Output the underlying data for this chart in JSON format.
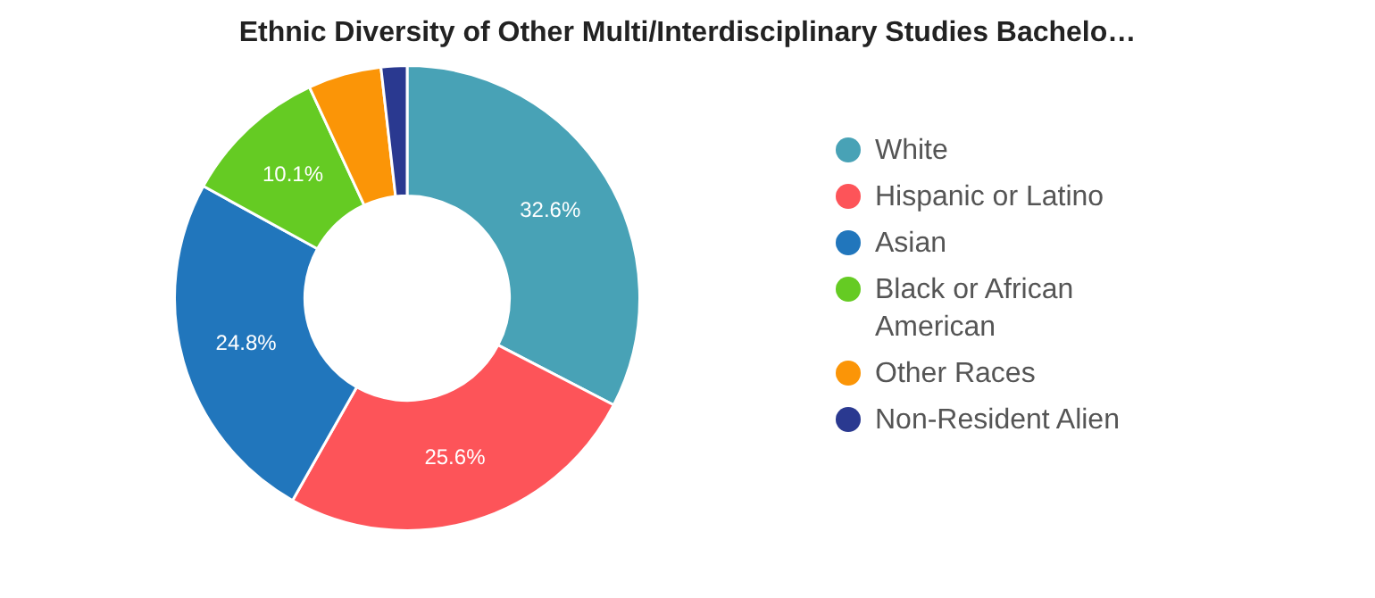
{
  "chart_data": {
    "type": "donut",
    "title": "Ethnic Diversity of Other Multi/Interdisciplinary Studies Bachelo…",
    "categories": [
      "White",
      "Hispanic or Latino",
      "Asian",
      "Black or African American",
      "Other Races",
      "Non-Resident Alien"
    ],
    "values": [
      32.6,
      25.6,
      24.8,
      10.1,
      5.1,
      1.8
    ],
    "value_labels": [
      "32.6%",
      "25.6%",
      "24.8%",
      "10.1%",
      null,
      null
    ],
    "colors": [
      "#48a2b6",
      "#fd5459",
      "#2176bc",
      "#65cb23",
      "#fb9507",
      "#2a3990"
    ],
    "legend": "right"
  }
}
